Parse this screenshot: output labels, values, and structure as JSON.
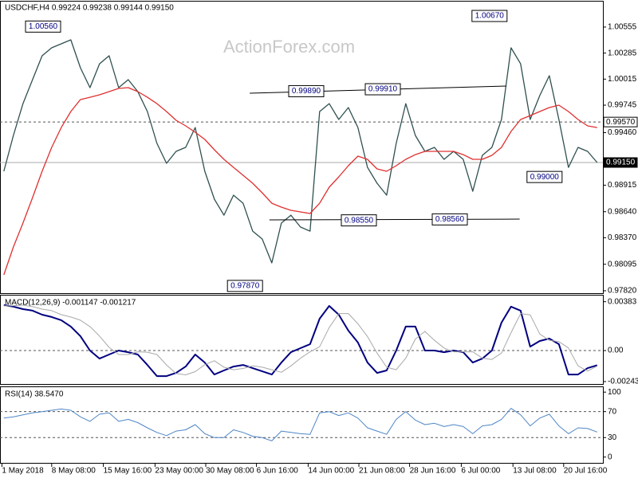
{
  "chart_data": [
    {
      "type": "line",
      "title": "USDCHF,H4  0.99224 0.99238 0.99144 0.99150",
      "watermark": "ActionForex.com",
      "x": [
        0,
        1,
        2,
        3,
        4,
        5,
        6,
        7,
        8,
        9,
        10,
        11,
        12,
        13,
        14,
        15,
        16,
        17,
        18,
        19,
        20,
        21,
        22,
        23,
        24,
        25,
        26,
        27,
        28,
        29,
        30,
        31,
        32,
        33,
        34,
        35,
        36,
        37,
        38,
        39,
        40,
        41,
        42,
        43,
        44,
        45,
        46,
        47,
        48,
        49,
        50,
        51,
        52,
        53,
        54,
        55,
        56,
        57,
        58,
        59,
        60,
        61,
        62
      ],
      "xlim": [
        -0.4,
        62.6
      ],
      "xticks": [
        {
          "value": -0.2,
          "label": "1 May 2018"
        },
        {
          "value": 5,
          "label": "8 May 08:00"
        },
        {
          "value": 10.4,
          "label": "15 May 16:00"
        },
        {
          "value": 15.8,
          "label": "23 May 00:00"
        },
        {
          "value": 21.1,
          "label": "30 May 08:00"
        },
        {
          "value": 26.4,
          "label": "6 Jun 16:00"
        },
        {
          "value": 31.8,
          "label": "14 Jun 00:00"
        },
        {
          "value": 37.1,
          "label": "21 Jun 08:00"
        },
        {
          "value": 42.4,
          "label": "28 Jun 16:00"
        },
        {
          "value": 47.8,
          "label": "6 Jul 00:00"
        },
        {
          "value": 53.2,
          "label": "13 Jul 08:00"
        },
        {
          "value": 58.5,
          "label": "20 Jul 16:00"
        }
      ],
      "ylim": [
        0.97795,
        1.00819
      ],
      "yticks": [
        {
          "value": 0.9782,
          "label": "0.97820"
        },
        0.98095,
        {
          "value": 0.9837,
          "label": "0.98370"
        },
        {
          "value": 0.9864,
          "label": "0.98640"
        },
        0.98915,
        {
          "value": 0.9946,
          "label": "0.99460"
        },
        0.99745,
        1.00015,
        1.00285,
        1.00555
      ],
      "series": [
        {
          "color": "#2f4f4f",
          "values": [
            0.99059,
            0.99431,
            0.99761,
            1.00009,
            1.00257,
            1.0034,
            1.00381,
            1.00422,
            1.00133,
            0.99927,
            1.00174,
            1.00257,
            0.99927,
            1.00009,
            0.99885,
            0.99679,
            0.99348,
            0.99142,
            0.99266,
            0.99307,
            0.99513,
            0.99059,
            0.9877,
            0.98604,
            0.98811,
            0.98728,
            0.98439,
            0.98357,
            0.98109,
            0.98522,
            0.98604,
            0.98481,
            0.98439,
            0.99679,
            0.99761,
            0.99596,
            0.9972,
            0.99513,
            0.991,
            0.98935,
            0.98811,
            0.99348,
            0.99761,
            0.99431,
            0.99266,
            0.99307,
            0.99183,
            0.99266,
            0.99183,
            0.98852,
            0.99224,
            0.99307,
            0.99596,
            1.0034,
            1.00174,
            0.99596,
            0.99844,
            1.00051,
            0.99596,
            0.991,
            0.99307,
            0.99266,
            0.9915
          ]
        },
        {
          "color": "#e03030",
          "values": [
            0.97985,
            0.98274,
            0.98522,
            0.98786,
            0.99059,
            0.99307,
            0.99513,
            0.99679,
            0.99803,
            0.99827,
            0.99852,
            0.99885,
            0.99918,
            0.99927,
            0.99885,
            0.99827,
            0.99761,
            0.99679,
            0.99588,
            0.9953,
            0.99464,
            0.9939,
            0.99282,
            0.99183,
            0.991,
            0.99018,
            0.98935,
            0.98836,
            0.98728,
            0.98687,
            0.98654,
            0.98638,
            0.98621,
            0.98728,
            0.98894,
            0.99001,
            0.99117,
            0.99216,
            0.99183,
            0.99084,
            0.99059,
            0.99117,
            0.99183,
            0.99232,
            0.99266,
            0.99266,
            0.99266,
            0.99266,
            0.99232,
            0.99183,
            0.99183,
            0.99224,
            0.99307,
            0.99472,
            0.99596,
            0.99637,
            0.99679,
            0.9972,
            0.99745,
            0.99679,
            0.99596,
            0.9953,
            0.99513
          ]
        }
      ],
      "annotations": [
        {
          "text": "1.00560",
          "x": 4.1,
          "y": 1.0056
        },
        {
          "text": "1.00670",
          "x": 50.75,
          "y": 1.0067
        },
        {
          "text": "0.99890",
          "x": 31.6,
          "y": 0.9989
        },
        {
          "text": "0.99910",
          "x": 39.6,
          "y": 0.9991
        },
        {
          "text": "0.98550",
          "x": 37.1,
          "y": 0.9855
        },
        {
          "text": "0.98560",
          "x": 46.6,
          "y": 0.9856
        },
        {
          "text": "0.97870",
          "x": 25.2,
          "y": 0.9787
        },
        {
          "text": "0.99000",
          "x": 56.5,
          "y": 0.99
        }
      ],
      "trendlines": [
        {
          "x": [
            25.7,
            52.5
          ],
          "y": [
            0.99869,
            0.99943
          ]
        },
        {
          "x": [
            27.75,
            53.9
          ],
          "y": [
            0.98555,
            0.98563
          ]
        }
      ],
      "levels": [
        {
          "value": 0.9957,
          "label": "0.99570",
          "dashed": true,
          "highlight": false
        },
        {
          "value": 0.9915,
          "label": "0.99150",
          "dashed": false,
          "highlight": true
        }
      ]
    },
    {
      "type": "line",
      "title": "MACD(12,26,9) -0.001147 -0.001217",
      "ylim": [
        -0.00262,
        0.00431
      ],
      "yticks": [
        {
          "value": -0.00243,
          "label": "-0.00243"
        },
        {
          "value": 0,
          "label": "0.00"
        },
        0.00383
      ],
      "levels": [
        0
      ],
      "series": [
        {
          "color": "#000080",
          "width": 2,
          "values": [
            0.00356,
            0.00344,
            0.00325,
            0.00313,
            0.00281,
            0.00263,
            0.00238,
            0.00188,
            0.00113,
            0,
            -0.00063,
            -0.00031,
            0,
            -0.00013,
            -0.00031,
            -0.00113,
            -0.002,
            -0.002,
            -0.00175,
            -0.00125,
            -0.00031,
            -0.00094,
            -0.00188,
            -0.00156,
            -0.00125,
            -0.00113,
            -0.00138,
            -0.00163,
            -0.00188,
            -0.00094,
            -0.00013,
            0.00019,
            0.0005,
            0.0025,
            0.0035,
            0.00281,
            0.00156,
            0.00063,
            -0.00094,
            -0.00175,
            -0.00156,
            0,
            0.00188,
            0.00188,
            0,
            0,
            -0.00013,
            0,
            -0.00013,
            -0.00094,
            -0.00063,
            0,
            0.00219,
            0.00344,
            0.00313,
            0.00031,
            0.00075,
            0.00094,
            0.0005,
            -0.00188,
            -0.00188,
            -0.00138,
            -0.001147
          ]
        },
        {
          "color": "#a9a9a9",
          "width": 1,
          "values": [
            0.0035,
            0.00352,
            0.00356,
            0.00344,
            0.00325,
            0.00313,
            0.00281,
            0.00263,
            0.00238,
            0.00188,
            0.00113,
            0.00025,
            -0.00031,
            -0.00031,
            -0.0001,
            -0.00013,
            -0.00031,
            -0.00113,
            -0.0018,
            -0.0019,
            -0.00165,
            -0.0011,
            -0.0008,
            -0.0013,
            -0.0015,
            -0.0014,
            -0.0012,
            -0.0013,
            -0.0015,
            -0.0017,
            -0.0012,
            -0.0006,
            -0.0001,
            0.0003,
            0.0018,
            0.0029,
            0.0029,
            0.0021,
            0.0011,
            -0.0002,
            -0.0013,
            -0.0015,
            -0.0006,
            0.0009,
            0.0015,
            0.0008,
            0.0002,
            -0.0001,
            -0.0001,
            -0.0001,
            -0.0006,
            -0.0007,
            -0.0002,
            0.0014,
            0.0029,
            0.0028,
            0.0013,
            0.0008,
            0.0007,
            0.0002,
            -0.0012,
            -0.0016,
            -0.001217
          ]
        }
      ]
    },
    {
      "type": "line",
      "title": "RSI(14) 38.5470",
      "ylim": [
        -8.9,
        107.6
      ],
      "yticks": [
        0,
        30,
        70,
        100
      ],
      "levels": [
        30,
        70
      ],
      "series": [
        {
          "color": "#4f86c6",
          "width": 1,
          "values": [
            60,
            62,
            65,
            68,
            70,
            72,
            74,
            72,
            62,
            55,
            66,
            68,
            55,
            58,
            53,
            45,
            38,
            33,
            40,
            42,
            50,
            36,
            30,
            30,
            42,
            38,
            32,
            30,
            25,
            40,
            38,
            36,
            35,
            68,
            70,
            64,
            68,
            60,
            45,
            40,
            35,
            58,
            70,
            57,
            50,
            52,
            47,
            50,
            47,
            36,
            48,
            50,
            58,
            75,
            65,
            48,
            60,
            66,
            48,
            36,
            45,
            44,
            38.547
          ]
        }
      ]
    }
  ]
}
